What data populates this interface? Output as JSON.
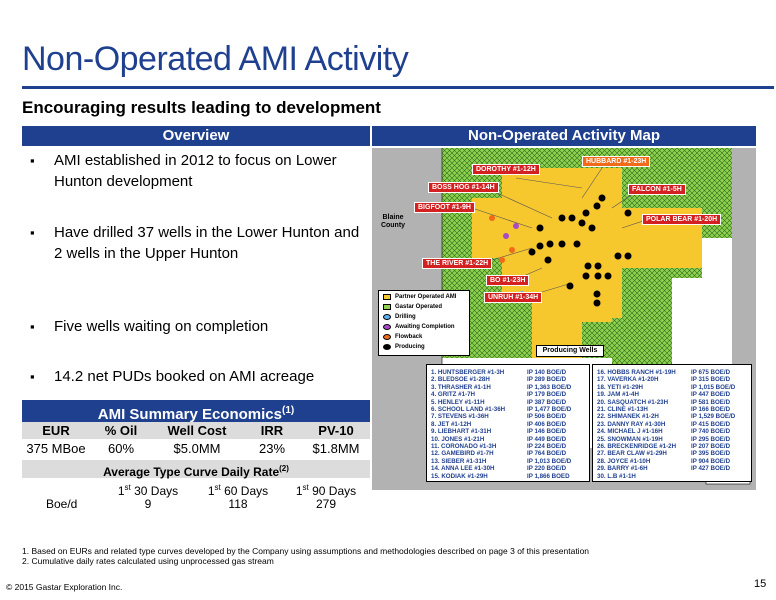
{
  "title": "Non-Operated AMI Activity",
  "subtitle": "Encouraging results leading to development",
  "overview": {
    "header": "Overview",
    "bullets": [
      "AMI established in 2012 to focus on Lower Hunton development",
      "Have drilled 37 wells in the Lower Hunton and 2 wells in the Upper Hunton",
      "Five wells waiting on completion",
      "14.2 net PUDs booked on AMI acreage"
    ]
  },
  "economics": {
    "header": "AMI Summary Economics",
    "header_note": "(1)",
    "columns": [
      "EUR",
      "% Oil",
      "Well Cost",
      "IRR",
      "PV-10"
    ],
    "values": [
      "375 MBoe",
      "60%",
      "$5.0MM",
      "23%",
      "$1.8MM"
    ]
  },
  "type_curve": {
    "header": "Average Type Curve Daily Rate",
    "header_note": "(2)",
    "columns": [
      {
        "prefix": "1",
        "sup": "st",
        "suffix": " 30 Days"
      },
      {
        "prefix": "1",
        "sup": "st",
        "suffix": " 60 Days"
      },
      {
        "prefix": "1",
        "sup": "st",
        "suffix": " 90 Days"
      }
    ],
    "row_label": "Boe/d",
    "values": [
      "9",
      "118",
      "279"
    ]
  },
  "footnotes": [
    "1.   Based on EURs and related type curves developed by the Company using assumptions and methodologies described on page 3 of this presentation",
    "2.   Cumulative daily rates calculated using unprocessed gas stream"
  ],
  "copyright": "© 2015 Gastar Exploration Inc.",
  "page_number": "15",
  "map": {
    "header": "Non-Operated Activity Map",
    "county": "Blaine County",
    "colors": {
      "partner": "#f7c72e",
      "gastar": "#8fd14f",
      "drilling": "#5bb0f0",
      "awaiting": "#a64ac9",
      "flowback": "#f06a1a",
      "producing": "#000000"
    },
    "well_labels_red": [
      {
        "text": "DOROTHY #1-12H"
      },
      {
        "text": "BOSS HOG #1-14H"
      },
      {
        "text": "BIGFOOT #1-9H"
      },
      {
        "text": "FALCON #1-5H"
      },
      {
        "text": "POLAR BEAR #1-20H"
      },
      {
        "text": "THE RIVER #1-22H"
      },
      {
        "text": "BO #1-23H"
      },
      {
        "text": "UNRUH #1-34H"
      }
    ],
    "well_labels_orange": [
      {
        "text": "HUBBARD #1-23H"
      }
    ],
    "legend": [
      "Partner Operated AMI",
      "Gastar Operated",
      "Drilling",
      "Awaiting Completion",
      "Flowback",
      "Producing"
    ],
    "producing_title": "Producing Wells",
    "wells_left": [
      [
        "1. HUNTSBERGER #1-3H",
        "IP 140 BOE/D"
      ],
      [
        "2. BLEDSOE #1-28H",
        "IP 289 BOE/D"
      ],
      [
        "3. THRASHER #1-1H",
        "IP 1,363 BOE/D"
      ],
      [
        "4. GRITZ #1-7H",
        "IP 179 BOE/D"
      ],
      [
        "5. HENLEY #1-11H",
        "IP 387 BOE/D"
      ],
      [
        "6. SCHOOL LAND #1-36H",
        "IP 1,477 BOE/D"
      ],
      [
        "7. STEVENS #1-36H",
        "IP 506 BOE/D"
      ],
      [
        "8. JET #1-12H",
        "IP 406 BOE/D"
      ],
      [
        "9. LIEBHART #1-31H",
        "IP 146 BOE/D"
      ],
      [
        "10. JONES #1-21H",
        "IP 449 BOE/D"
      ],
      [
        "11. CORONADO #1-3H",
        "IP 224 BOE/D"
      ],
      [
        "12. GAMEBIRD #1-7H",
        "IP 764 BOE/D"
      ],
      [
        "13. SIEBER #1-31H",
        "IP 1,013 BOE/D"
      ],
      [
        "14. ANNA LEE #1-30H",
        "IP 220 BOE/D"
      ],
      [
        "15. KODIAK #1-29H",
        "IP 1,866 BOED"
      ]
    ],
    "wells_right": [
      [
        "16. HOBBS RANCH #1-19H",
        "IP 675 BOE/D"
      ],
      [
        "17. VAVERKA #1-20H",
        "IP 315 BOE/D"
      ],
      [
        "18. YETI #1-29H",
        "IP 1,015 BOE/D"
      ],
      [
        "19. JAM #1-4H",
        "IP 447 BOE/D"
      ],
      [
        "20. SASQUATCH #1-23H",
        "IP 581 BOE/D"
      ],
      [
        "21. CLINE #1-13H",
        "IP 166 BOE/D"
      ],
      [
        "22. SHIMANEK #1-2H",
        "IP 1,529 BOE/D"
      ],
      [
        "23. DANNY RAY #1-30H",
        "IP 415 BOE/D"
      ],
      [
        "24. MICHAEL J #1-16H",
        "IP 740 BOE/D"
      ],
      [
        "25. SNOWMAN #1-19H",
        "IP 295 BOE/D"
      ],
      [
        "26. BRECKENRIDGE #1-2H",
        "IP 207 BOE/D"
      ],
      [
        "27. BEAR CLAW #1-29H",
        "IP 395 BOE/D"
      ],
      [
        "28. JOYCE #1-10H",
        "IP 904 BOE/D"
      ],
      [
        "29. BARRY #1-6H",
        "IP 427 BOE/D"
      ],
      [
        "30. L.B #1-1H",
        ""
      ]
    ],
    "well_numbers": [
      "1",
      "2",
      "3",
      "4",
      "5",
      "6",
      "7",
      "8",
      "9",
      "10",
      "11",
      "12",
      "13",
      "14",
      "15",
      "16",
      "17",
      "18",
      "19",
      "20",
      "21",
      "22",
      "23",
      "24",
      "25",
      "26",
      "27",
      "28",
      "29",
      "30"
    ]
  }
}
